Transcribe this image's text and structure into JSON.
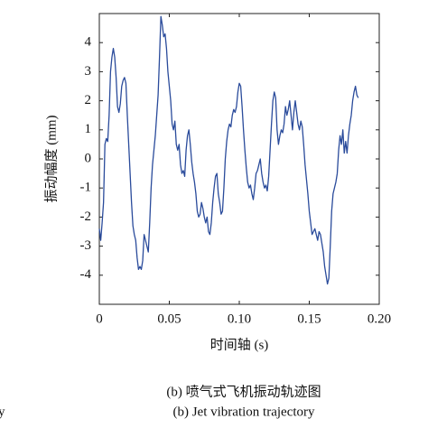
{
  "chart_data": {
    "type": "line",
    "xlabel": "时间轴 (s)",
    "ylabel": "振动幅度 (mm)",
    "caption_cn": "(b) 喷气式飞机振动轨迹图",
    "caption_en": "(b) Jet vibration trajectory",
    "fragment": "y",
    "xlim": [
      0,
      0.2
    ],
    "ylim": [
      -5,
      5
    ],
    "xticks": [
      0,
      0.05,
      {
        "value": 0.1,
        "label": "0.10"
      },
      0.15,
      {
        "value": 0.2,
        "label": "0.20"
      }
    ],
    "yticks": [
      -4,
      -3,
      -2,
      -1,
      0,
      1,
      2,
      3,
      4
    ],
    "grid": false,
    "x": [
      0,
      0.001,
      0.002,
      0.003,
      0.004,
      0.005,
      0.006,
      0.007,
      0.008,
      0.009,
      0.01,
      0.011,
      0.012,
      0.013,
      0.014,
      0.015,
      0.016,
      0.017,
      0.018,
      0.019,
      0.02,
      0.021,
      0.022,
      0.023,
      0.024,
      0.025,
      0.026,
      0.027,
      0.028,
      0.029,
      0.03,
      0.031,
      0.032,
      0.033,
      0.034,
      0.035,
      0.036,
      0.037,
      0.038,
      0.039,
      0.04,
      0.041,
      0.042,
      0.043,
      0.044,
      0.045,
      0.046,
      0.047,
      0.048,
      0.049,
      0.05,
      0.051,
      0.052,
      0.053,
      0.054,
      0.055,
      0.056,
      0.057,
      0.058,
      0.059,
      0.06,
      0.061,
      0.062,
      0.063,
      0.064,
      0.065,
      0.066,
      0.067,
      0.068,
      0.069,
      0.07,
      0.071,
      0.072,
      0.073,
      0.074,
      0.075,
      0.076,
      0.077,
      0.078,
      0.079,
      0.08,
      0.081,
      0.082,
      0.083,
      0.084,
      0.085,
      0.086,
      0.087,
      0.088,
      0.089,
      0.09,
      0.091,
      0.092,
      0.093,
      0.094,
      0.095,
      0.096,
      0.097,
      0.098,
      0.099,
      0.1,
      0.101,
      0.102,
      0.103,
      0.104,
      0.105,
      0.106,
      0.107,
      0.108,
      0.109,
      0.11,
      0.111,
      0.112,
      0.113,
      0.114,
      0.115,
      0.116,
      0.117,
      0.118,
      0.119,
      0.12,
      0.121,
      0.122,
      0.123,
      0.124,
      0.125,
      0.126,
      0.127,
      0.128,
      0.129,
      0.13,
      0.131,
      0.132,
      0.133,
      0.134,
      0.135,
      0.136,
      0.137,
      0.138,
      0.139,
      0.14,
      0.141,
      0.142,
      0.143,
      0.144,
      0.145,
      0.146,
      0.147,
      0.148,
      0.149,
      0.15,
      0.151,
      0.152,
      0.153,
      0.154,
      0.155,
      0.156,
      0.157,
      0.158,
      0.159,
      0.16,
      0.161,
      0.162,
      0.163,
      0.164,
      0.165,
      0.166,
      0.167,
      0.168,
      0.169,
      0.17,
      0.171,
      0.172,
      0.173,
      0.174,
      0.175,
      0.176,
      0.177,
      0.178,
      0.179,
      0.18,
      0.181,
      0.182,
      0.183,
      0.184,
      0.185
    ],
    "series": [
      {
        "color": "#2a4b9b",
        "values": [
          -2.4,
          -2.8,
          -2.2,
          -1.5,
          0.5,
          0.7,
          0.6,
          1.5,
          3.0,
          3.5,
          3.8,
          3.5,
          2.8,
          1.8,
          1.6,
          1.9,
          2.5,
          2.7,
          2.8,
          2.6,
          1.5,
          0.5,
          -0.5,
          -1.5,
          -2.3,
          -2.6,
          -2.8,
          -3.4,
          -3.8,
          -3.7,
          -3.8,
          -3.5,
          -2.6,
          -2.8,
          -3.0,
          -3.2,
          -2.2,
          -1.0,
          -0.2,
          0.3,
          0.8,
          1.5,
          2.2,
          3.5,
          4.9,
          4.6,
          4.2,
          4.3,
          3.8,
          3.0,
          2.5,
          2.0,
          1.2,
          1.0,
          1.3,
          0.5,
          0.3,
          0.5,
          -0.2,
          -0.5,
          -0.4,
          -0.6,
          0.3,
          0.8,
          1.0,
          0.5,
          -0.1,
          -0.5,
          -0.8,
          -1.2,
          -1.8,
          -2.0,
          -1.9,
          -1.5,
          -1.7,
          -2.0,
          -2.2,
          -2.0,
          -2.5,
          -2.6,
          -2.2,
          -1.5,
          -1.0,
          -0.6,
          -0.5,
          -1.2,
          -1.5,
          -1.9,
          -1.8,
          -1.0,
          0.0,
          0.6,
          1.0,
          1.2,
          1.1,
          1.5,
          1.7,
          1.6,
          1.8,
          2.3,
          2.6,
          2.5,
          1.8,
          1.0,
          0.3,
          -0.3,
          -0.8,
          -1.0,
          -0.9,
          -1.2,
          -1.4,
          -1.0,
          -0.5,
          -0.4,
          -0.2,
          0.0,
          -0.5,
          -0.8,
          -1.0,
          -0.9,
          -1.1,
          -0.6,
          0.3,
          1.2,
          2.0,
          2.3,
          2.1,
          1.0,
          0.5,
          0.8,
          1.0,
          0.9,
          1.2,
          1.8,
          1.5,
          1.7,
          2.0,
          1.5,
          1.0,
          1.6,
          2.0,
          1.6,
          1.2,
          1.0,
          1.3,
          1.1,
          0.5,
          -0.2,
          -0.7,
          -1.2,
          -1.8,
          -2.2,
          -2.6,
          -2.5,
          -2.4,
          -2.6,
          -2.8,
          -2.5,
          -2.6,
          -2.9,
          -3.2,
          -3.7,
          -4.0,
          -4.3,
          -4.1,
          -3.0,
          -1.8,
          -1.2,
          -1.0,
          -0.8,
          -0.5,
          0.3,
          0.8,
          0.5,
          1.0,
          0.2,
          0.6,
          0.2,
          0.8,
          1.2,
          1.5,
          2.0,
          2.3,
          2.5,
          2.2,
          2.1
        ]
      }
    ]
  }
}
